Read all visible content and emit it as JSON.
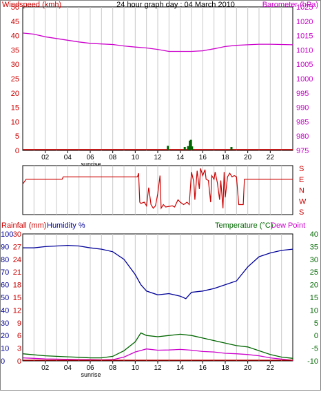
{
  "title": "24 hour graph day : 04 March 2010",
  "colors": {
    "windspeed": "#cc0000",
    "barometer": "#cc00cc",
    "gust": "#006600",
    "direction": "#cc0000",
    "rainfall": "#cc0000",
    "humidity": "#000099",
    "temperature": "#006600",
    "dewpoint": "#cc00cc",
    "grid": "#c8c8c8"
  },
  "chart_data": [
    {
      "type": "line",
      "name": "wind-barometer",
      "left_label": "Windspeed (kmh)",
      "right_label": "Barometer (hPa)",
      "left_ticks": [
        "50",
        "45",
        "40",
        "35",
        "30",
        "25",
        "20",
        "15",
        "10",
        "5",
        "0"
      ],
      "right_ticks": [
        "1025",
        "1020",
        "1015",
        "1010",
        "1005",
        "1000",
        "995",
        "990",
        "985",
        "980",
        "975"
      ],
      "x_ticks": [
        "02",
        "04",
        "06",
        "08",
        "10",
        "12",
        "14",
        "16",
        "18",
        "20",
        "22"
      ],
      "x_annotation": "sunrise",
      "ylim": [
        0,
        50
      ],
      "y2lim": [
        975,
        1025
      ],
      "series": [
        {
          "key": "barometer",
          "axis": "right",
          "points": [
            [
              0,
              1015.9
            ],
            [
              1,
              1015.5
            ],
            [
              2,
              1014.6
            ],
            [
              3,
              1014.0
            ],
            [
              4,
              1013.4
            ],
            [
              5,
              1012.8
            ],
            [
              6,
              1012.3
            ],
            [
              7,
              1012.1
            ],
            [
              8,
              1011.9
            ],
            [
              9,
              1011.4
            ],
            [
              10,
              1011.0
            ],
            [
              11,
              1010.7
            ],
            [
              12,
              1010.2
            ],
            [
              13,
              1009.5
            ],
            [
              14,
              1009.5
            ],
            [
              15,
              1009.5
            ],
            [
              16,
              1009.7
            ],
            [
              17,
              1010.4
            ],
            [
              18,
              1011.2
            ],
            [
              19,
              1011.6
            ],
            [
              20,
              1011.8
            ],
            [
              21,
              1012.0
            ],
            [
              22,
              1012.0
            ],
            [
              23,
              1011.9
            ],
            [
              24,
              1011.8
            ]
          ]
        },
        {
          "key": "windspeed",
          "axis": "left",
          "points": [
            [
              0,
              0.3
            ],
            [
              24,
              0.3
            ]
          ]
        }
      ],
      "gust_bars": [
        [
          12.9,
          1.6
        ],
        [
          14.4,
          1.2
        ],
        [
          14.7,
          1.5
        ],
        [
          14.85,
          3.4
        ],
        [
          14.95,
          3.7
        ],
        [
          15.05,
          1.4
        ],
        [
          18.55,
          1.2
        ]
      ]
    },
    {
      "type": "line",
      "name": "wind-direction",
      "right_ticks": [
        "S",
        "E",
        "N",
        "W",
        "S"
      ],
      "ylim": [
        0,
        360
      ],
      "points": [
        [
          0,
          230
        ],
        [
          0.3,
          270
        ],
        [
          3.5,
          270
        ],
        [
          3.6,
          290
        ],
        [
          10.2,
          290
        ],
        [
          10.3,
          320
        ],
        [
          10.4,
          80
        ],
        [
          10.5,
          70
        ],
        [
          10.8,
          80
        ],
        [
          11.0,
          50
        ],
        [
          11.2,
          200
        ],
        [
          11.4,
          60
        ],
        [
          11.6,
          30
        ],
        [
          11.8,
          50
        ],
        [
          12.0,
          150
        ],
        [
          12.2,
          300
        ],
        [
          12.3,
          30
        ],
        [
          12.5,
          60
        ],
        [
          12.7,
          40
        ],
        [
          13.0,
          45
        ],
        [
          13.3,
          50
        ],
        [
          13.5,
          40
        ],
        [
          13.8,
          100
        ],
        [
          14.0,
          80
        ],
        [
          14.3,
          60
        ],
        [
          14.6,
          80
        ],
        [
          14.8,
          60
        ],
        [
          15.0,
          330
        ],
        [
          15.2,
          250
        ],
        [
          15.3,
          100
        ],
        [
          15.5,
          340
        ],
        [
          15.7,
          190
        ],
        [
          15.8,
          360
        ],
        [
          16.0,
          300
        ],
        [
          16.2,
          350
        ],
        [
          16.3,
          270
        ],
        [
          16.5,
          260
        ],
        [
          16.7,
          80
        ],
        [
          16.8,
          300
        ],
        [
          17.0,
          270
        ],
        [
          17.1,
          330
        ],
        [
          17.3,
          240
        ],
        [
          17.5,
          100
        ],
        [
          17.6,
          260
        ],
        [
          17.8,
          30
        ],
        [
          17.9,
          330
        ],
        [
          18.0,
          120
        ],
        [
          18.2,
          290
        ],
        [
          18.4,
          320
        ],
        [
          18.6,
          290
        ],
        [
          18.8,
          300
        ],
        [
          19.0,
          290
        ],
        [
          19.2,
          60
        ],
        [
          19.6,
          60
        ],
        [
          19.7,
          270
        ],
        [
          24,
          270
        ]
      ]
    },
    {
      "type": "line",
      "name": "temp-humidity-rain",
      "left_label_rain": "Rainfall (mm)",
      "left_label_humidity": "Humidity %",
      "right_label_temp": "Temperature (°C)",
      "right_label_dew": "Dew Point",
      "humidity_ticks": [
        "100",
        "90",
        "80",
        "70",
        "60",
        "50",
        "40",
        "30",
        "20",
        "10",
        "0"
      ],
      "rain_ticks": [
        "30",
        "27",
        "24",
        "21",
        "18",
        "15",
        "12",
        "9",
        "6",
        "3",
        "0"
      ],
      "temp_ticks": [
        "40",
        "35",
        "30",
        "25",
        "20",
        "15",
        "10",
        "5",
        "0",
        "-5",
        "-10"
      ],
      "x_ticks": [
        "02",
        "04",
        "06",
        "08",
        "10",
        "12",
        "14",
        "16",
        "18",
        "20",
        "22"
      ],
      "x_annotation": "sunrise",
      "humidity_lim": [
        0,
        100
      ],
      "temp_lim": [
        -10,
        40
      ],
      "series": [
        {
          "key": "humidity",
          "points": [
            [
              0,
              89
            ],
            [
              1,
              89
            ],
            [
              2,
              90
            ],
            [
              3,
              90.5
            ],
            [
              4,
              91
            ],
            [
              5,
              90.5
            ],
            [
              6,
              89
            ],
            [
              7,
              88
            ],
            [
              8,
              86
            ],
            [
              9,
              80
            ],
            [
              10,
              68
            ],
            [
              10.5,
              60
            ],
            [
              11,
              55
            ],
            [
              12,
              52
            ],
            [
              13,
              53
            ],
            [
              14,
              51
            ],
            [
              14.5,
              49
            ],
            [
              15,
              54
            ],
            [
              16,
              55
            ],
            [
              17,
              57
            ],
            [
              18,
              60
            ],
            [
              19,
              63
            ],
            [
              20,
              74
            ],
            [
              21,
              82
            ],
            [
              22,
              85
            ],
            [
              23,
              87
            ],
            [
              24,
              88
            ]
          ]
        },
        {
          "key": "temperature",
          "points": [
            [
              0,
              -7.2
            ],
            [
              1,
              -7.6
            ],
            [
              2,
              -8
            ],
            [
              3,
              -8.2
            ],
            [
              4,
              -8.4
            ],
            [
              5,
              -8.6
            ],
            [
              6,
              -8.8
            ],
            [
              7,
              -8.8
            ],
            [
              8,
              -8.2
            ],
            [
              9,
              -6
            ],
            [
              10,
              -2.5
            ],
            [
              10.5,
              1
            ],
            [
              11,
              0
            ],
            [
              12,
              -0.5
            ],
            [
              13,
              0
            ],
            [
              14,
              0.5
            ],
            [
              15,
              0
            ],
            [
              16,
              -1
            ],
            [
              17,
              -2
            ],
            [
              18,
              -3
            ],
            [
              19,
              -4
            ],
            [
              20,
              -4.5
            ],
            [
              21,
              -6
            ],
            [
              22,
              -7.5
            ],
            [
              23,
              -8.5
            ],
            [
              24,
              -9
            ]
          ]
        },
        {
          "key": "dewpoint",
          "points": [
            [
              0,
              -8.8
            ],
            [
              1,
              -9
            ],
            [
              2,
              -9.2
            ],
            [
              3,
              -9.3
            ],
            [
              4,
              -9.4
            ],
            [
              5,
              -9.5
            ],
            [
              6,
              -9.5
            ],
            [
              7,
              -9.6
            ],
            [
              8,
              -9.5
            ],
            [
              9,
              -8.5
            ],
            [
              10,
              -6.5
            ],
            [
              11,
              -5.3
            ],
            [
              12,
              -5.8
            ],
            [
              13,
              -5.7
            ],
            [
              14,
              -5.5
            ],
            [
              15,
              -5.8
            ],
            [
              16,
              -6.3
            ],
            [
              17,
              -6.5
            ],
            [
              18,
              -7
            ],
            [
              19,
              -7.2
            ],
            [
              20,
              -7.5
            ],
            [
              21,
              -8
            ],
            [
              22,
              -8.8
            ],
            [
              23,
              -9.3
            ],
            [
              24,
              -9.8
            ]
          ]
        },
        {
          "key": "rainfall",
          "points": [
            [
              0,
              0
            ],
            [
              24,
              0
            ]
          ]
        }
      ]
    }
  ]
}
